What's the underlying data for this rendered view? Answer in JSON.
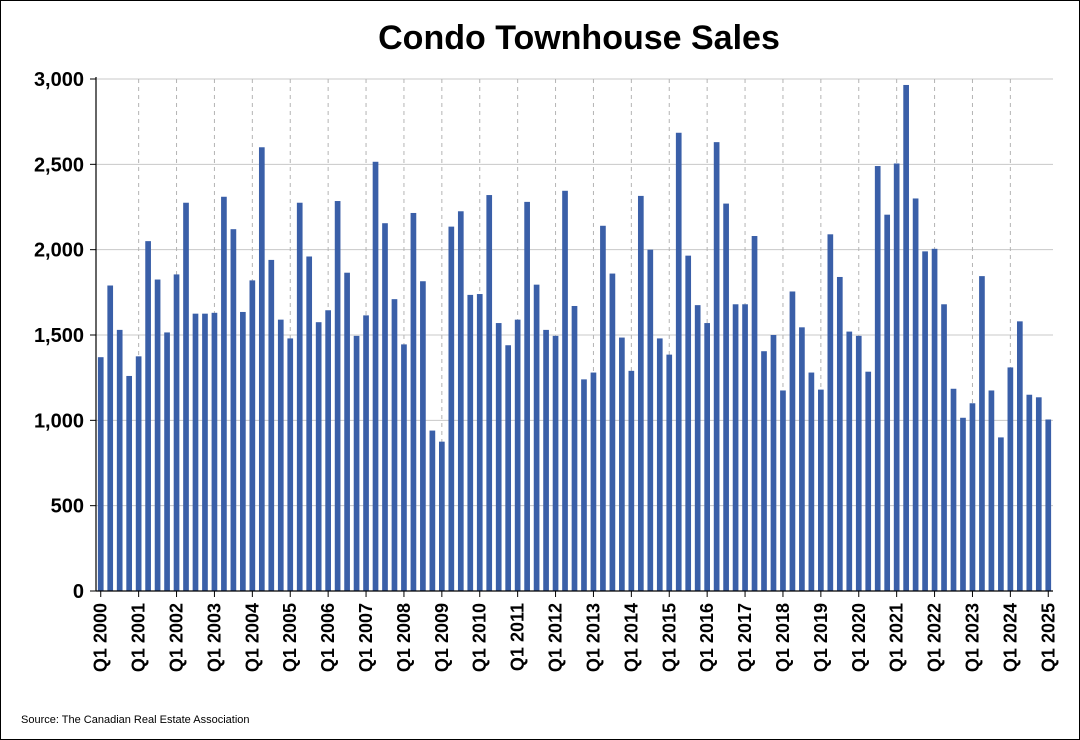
{
  "chart_data": {
    "type": "bar",
    "title": "Condo Townhouse Sales",
    "xlabel": "",
    "ylabel": "",
    "ylim": [
      0,
      3000
    ],
    "yticks": [
      0,
      500,
      1000,
      1500,
      2000,
      2500,
      3000
    ],
    "ytick_labels": [
      "0",
      "500",
      "1,000",
      "1,500",
      "2,000",
      "2,500",
      "3,000"
    ],
    "grid": "horizontal solid, vertical dashed at Q1 ticks",
    "xtick_labels": [
      "Q1 2000",
      "Q1 2001",
      "Q1 2002",
      "Q1 2003",
      "Q1 2004",
      "Q1 2005",
      "Q1 2006",
      "Q1 2007",
      "Q1 2008",
      "Q1 2009",
      "Q1 2010",
      "Q1 2011",
      "Q1 2012",
      "Q1 2013",
      "Q1 2014",
      "Q1 2015",
      "Q1 2016",
      "Q1 2017",
      "Q1 2018",
      "Q1 2019",
      "Q1 2020",
      "Q1 2021",
      "Q1 2022",
      "Q1 2023",
      "Q1 2024",
      "Q1 2025"
    ],
    "bar_color": "#3A5FA8",
    "values": [
      1370,
      1790,
      1530,
      1260,
      1375,
      2050,
      1825,
      1515,
      1855,
      2275,
      1625,
      1625,
      1630,
      2310,
      2120,
      1635,
      1820,
      2600,
      1940,
      1590,
      1480,
      2275,
      1960,
      1575,
      1645,
      2285,
      1865,
      1495,
      1615,
      2515,
      2155,
      1710,
      1445,
      2215,
      1815,
      940,
      875,
      2135,
      2225,
      1735,
      1740,
      2320,
      1570,
      1440,
      1590,
      2280,
      1795,
      1530,
      1495,
      2345,
      1670,
      1240,
      1280,
      2140,
      1860,
      1485,
      1290,
      2315,
      2000,
      1480,
      1385,
      2685,
      1965,
      1675,
      1570,
      2630,
      2270,
      1680,
      1680,
      2080,
      1405,
      1500,
      1175,
      1755,
      1545,
      1280,
      1180,
      2090,
      1840,
      1520,
      1495,
      1285,
      2490,
      2205,
      2505,
      2965,
      2300,
      1990,
      2005,
      1680,
      1185,
      1015,
      1100,
      1845,
      1175,
      900,
      1310,
      1580,
      1150,
      1135,
      1005
    ]
  },
  "source": "Source: The Canadian Real Estate Association"
}
